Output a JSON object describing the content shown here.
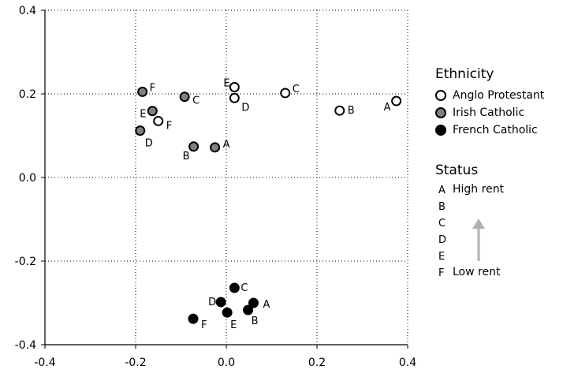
{
  "chart_data": {
    "type": "scatter",
    "title": "",
    "xlabel": "",
    "ylabel": "",
    "xlim": [
      -0.4,
      0.4
    ],
    "ylim": [
      -0.4,
      0.4
    ],
    "x_ticks": [
      "-0.4",
      "-0.2",
      "0.0",
      "0.2",
      "0.4"
    ],
    "y_ticks": [
      "0.4",
      "0.2",
      "0.0",
      "-0.2",
      "-0.4"
    ],
    "grid": "dotted",
    "legend_position": "right",
    "series": [
      {
        "name": "Anglo Protestant",
        "style": "open",
        "color": "#ffffff",
        "points": [
          {
            "label": "A",
            "x": 0.375,
            "y": 0.183
          },
          {
            "label": "B",
            "x": 0.25,
            "y": 0.16
          },
          {
            "label": "C",
            "x": 0.13,
            "y": 0.202
          },
          {
            "label": "D",
            "x": 0.018,
            "y": 0.19
          },
          {
            "label": "E",
            "x": 0.018,
            "y": 0.216
          },
          {
            "label": "F",
            "x": -0.15,
            "y": 0.135
          }
        ]
      },
      {
        "name": "Irish Catholic",
        "style": "grey",
        "color": "#808080",
        "points": [
          {
            "label": "A",
            "x": -0.025,
            "y": 0.072
          },
          {
            "label": "B",
            "x": -0.072,
            "y": 0.074
          },
          {
            "label": "C",
            "x": -0.092,
            "y": 0.193
          },
          {
            "label": "D",
            "x": -0.19,
            "y": 0.112
          },
          {
            "label": "E",
            "x": -0.163,
            "y": 0.159
          },
          {
            "label": "F",
            "x": -0.185,
            "y": 0.205
          }
        ]
      },
      {
        "name": "French Catholic",
        "style": "black",
        "color": "#000000",
        "points": [
          {
            "label": "A",
            "x": 0.06,
            "y": -0.3
          },
          {
            "label": "B",
            "x": 0.048,
            "y": -0.317
          },
          {
            "label": "C",
            "x": 0.018,
            "y": -0.264
          },
          {
            "label": "D",
            "x": -0.012,
            "y": -0.298
          },
          {
            "label": "E",
            "x": 0.002,
            "y": -0.323
          },
          {
            "label": "F",
            "x": -0.073,
            "y": -0.338
          }
        ]
      }
    ]
  },
  "legend": {
    "title": "Ethnicity",
    "items": [
      {
        "label": "Anglo Protestant",
        "fill": "#ffffff"
      },
      {
        "label": "Irish Catholic",
        "fill": "#808080"
      },
      {
        "label": "French Catholic",
        "fill": "#000000"
      }
    ]
  },
  "status_legend": {
    "title": "Status",
    "letters": [
      "A",
      "B",
      "C",
      "D",
      "E",
      "F"
    ],
    "high_label": "High rent",
    "low_label": "Low rent",
    "arrow_color": "#b0b0b0"
  }
}
